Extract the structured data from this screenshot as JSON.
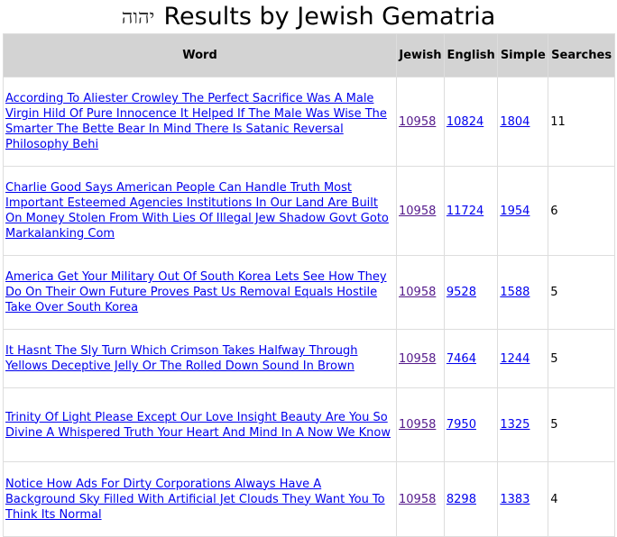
{
  "title": {
    "hebrew": "יהוה",
    "text": "Results by Jewish Gematria"
  },
  "columns": [
    "Word",
    "Jewish",
    "English",
    "Simple",
    "Searches"
  ],
  "rows": [
    {
      "word": "According To Aliester Crowley The Perfect Sacrifice Was A Male Virgin Hild Of Pure Innocence It Helped If The Male Was Wise The Smarter The Bette Bear In Mind There Is Satanic Reversal Philosophy Behi",
      "jewish": "10958",
      "english": "10824",
      "simple": "1804",
      "searches": "11"
    },
    {
      "word": "Charlie Good Says American People Can Handle Truth Most Important Esteemed Agencies Institutions In Our Land Are Built On Money Stolen From With Lies Of Illegal Jew Shadow Govt Goto Markalanking Com",
      "jewish": "10958",
      "english": "11724",
      "simple": "1954",
      "searches": "6"
    },
    {
      "word": "America Get Your Military Out Of South Korea Lets See How They Do On Their Own Future Proves Past Us Removal Equals Hostile Take Over South Korea",
      "jewish": "10958",
      "english": "9528",
      "simple": "1588",
      "searches": "5"
    },
    {
      "word": "It Hasnt The Sly Turn Which Crimson Takes Halfway Through Yellows Deceptive Jelly Or The Rolled Down Sound In Brown",
      "jewish": "10958",
      "english": "7464",
      "simple": "1244",
      "searches": "5"
    },
    {
      "word": "Trinity Of Light Please Except Our Love Insight Beauty Are You So Divine A Whispered Truth Your Heart And Mind In A Now We Know",
      "jewish": "10958",
      "english": "7950",
      "simple": "1325",
      "searches": "5"
    },
    {
      "word": "Notice How Ads For Dirty Corporations Always Have A Background Sky Filled With Artificial Jet Clouds They Want You To Think Its Normal",
      "jewish": "10958",
      "english": "8298",
      "simple": "1383",
      "searches": "4"
    }
  ]
}
